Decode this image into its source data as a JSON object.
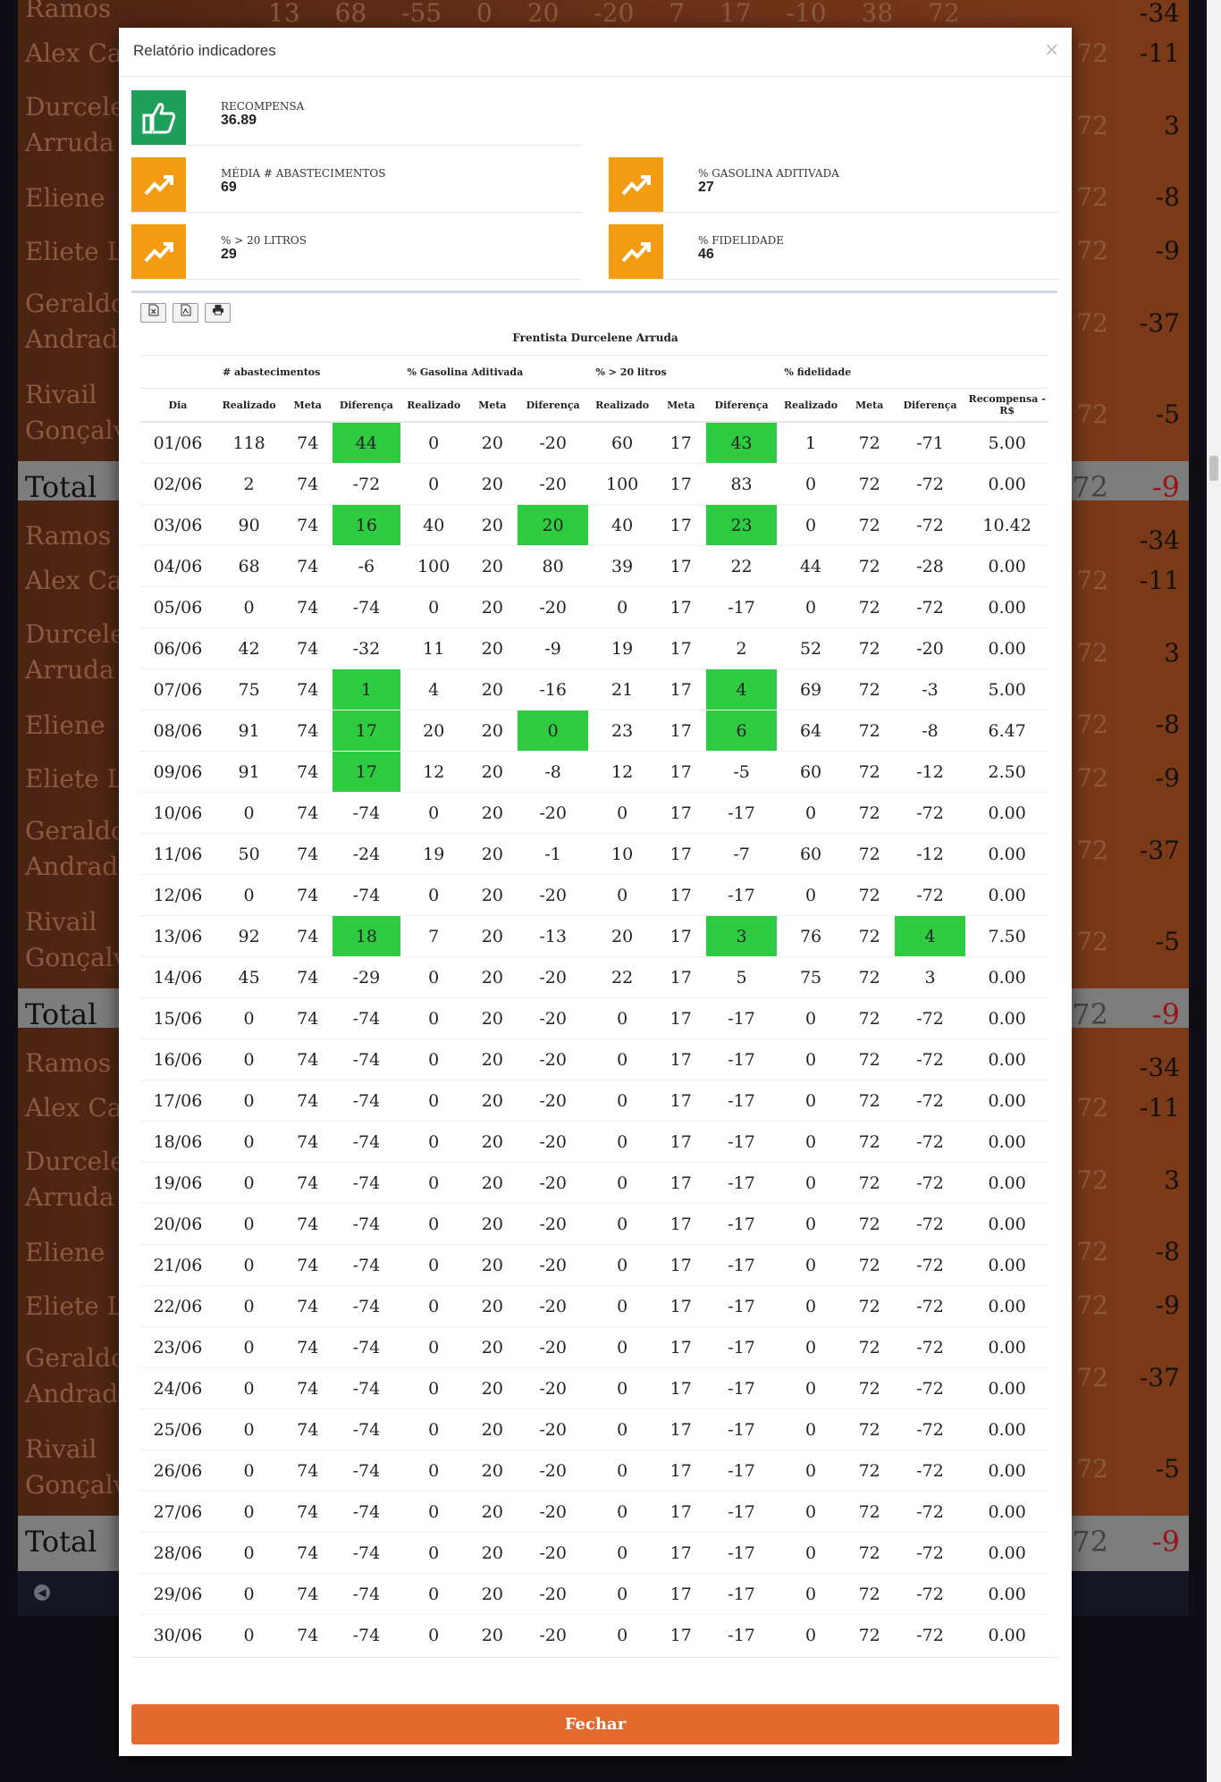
{
  "background": {
    "sections": [
      {
        "top_partial": {
          "name": "Ramos",
          "nums": "13 68 -55 0 20 -20 7 17 -10 38 72",
          "value": "-34"
        },
        "rows": [
          {
            "name": "Alex Ca",
            "ghost": "72",
            "value": "-11"
          },
          {
            "name": "Durcele\nArruda",
            "ghost": "72",
            "value": "3"
          },
          {
            "name": "Eliene",
            "ghost": "72",
            "value": "-8"
          },
          {
            "name": "Eliete La",
            "ghost": "72",
            "value": "-9"
          },
          {
            "name": "Geraldo\nAndrade",
            "ghost": "72",
            "value": "-37"
          },
          {
            "name": "Rivail\nGonçalv",
            "ghost": "72",
            "value": "-5"
          }
        ],
        "total": {
          "label": "Total",
          "ghost": "72",
          "value": "-9"
        }
      }
    ]
  },
  "modal": {
    "title": "Relatório indicadores",
    "close_icon": "×",
    "kpis": {
      "recompensa": {
        "label": "RECOMPENSA",
        "value": "36.89"
      },
      "media": {
        "label": "MÉDIA # ABASTECIMENTOS",
        "value": "69"
      },
      "gasolina": {
        "label": "% GASOLINA ADITIVADA",
        "value": "27"
      },
      "litros": {
        "label": "% > 20 LITROS",
        "value": "29"
      },
      "fidelidade": {
        "label": "% FIDELIDADE",
        "value": "46"
      }
    },
    "colors": {
      "hit": "#2ecc40",
      "orange": "#f39c12",
      "green": "#1ea05a",
      "button": "#e36a2e"
    },
    "report_title": "Frentista Durcelene Arruda",
    "groups": [
      "# abastecimentos",
      "% Gasolina Aditivada",
      "% > 20 litros",
      "% fidelidade"
    ],
    "columns": [
      "Dia",
      "Realizado",
      "Meta",
      "Diferença",
      "Realizado",
      "Meta",
      "Diferença",
      "Realizado",
      "Meta",
      "Diferença",
      "Realizado",
      "Meta",
      "Diferença",
      "Recompensa - R$"
    ],
    "rows": [
      {
        "cells": [
          "01/06",
          "118",
          "74",
          "44",
          "0",
          "20",
          "-20",
          "60",
          "17",
          "43",
          "1",
          "72",
          "-71",
          "5.00"
        ],
        "hits": [
          3,
          9
        ]
      },
      {
        "cells": [
          "02/06",
          "2",
          "74",
          "-72",
          "0",
          "20",
          "-20",
          "100",
          "17",
          "83",
          "0",
          "72",
          "-72",
          "0.00"
        ],
        "hits": []
      },
      {
        "cells": [
          "03/06",
          "90",
          "74",
          "16",
          "40",
          "20",
          "20",
          "40",
          "17",
          "23",
          "0",
          "72",
          "-72",
          "10.42"
        ],
        "hits": [
          3,
          6,
          9
        ]
      },
      {
        "cells": [
          "04/06",
          "68",
          "74",
          "-6",
          "100",
          "20",
          "80",
          "39",
          "17",
          "22",
          "44",
          "72",
          "-28",
          "0.00"
        ],
        "hits": []
      },
      {
        "cells": [
          "05/06",
          "0",
          "74",
          "-74",
          "0",
          "20",
          "-20",
          "0",
          "17",
          "-17",
          "0",
          "72",
          "-72",
          "0.00"
        ],
        "hits": []
      },
      {
        "cells": [
          "06/06",
          "42",
          "74",
          "-32",
          "11",
          "20",
          "-9",
          "19",
          "17",
          "2",
          "52",
          "72",
          "-20",
          "0.00"
        ],
        "hits": []
      },
      {
        "cells": [
          "07/06",
          "75",
          "74",
          "1",
          "4",
          "20",
          "-16",
          "21",
          "17",
          "4",
          "69",
          "72",
          "-3",
          "5.00"
        ],
        "hits": [
          3,
          9
        ]
      },
      {
        "cells": [
          "08/06",
          "91",
          "74",
          "17",
          "20",
          "20",
          "0",
          "23",
          "17",
          "6",
          "64",
          "72",
          "-8",
          "6.47"
        ],
        "hits": [
          3,
          6,
          9
        ]
      },
      {
        "cells": [
          "09/06",
          "91",
          "74",
          "17",
          "12",
          "20",
          "-8",
          "12",
          "17",
          "-5",
          "60",
          "72",
          "-12",
          "2.50"
        ],
        "hits": [
          3
        ]
      },
      {
        "cells": [
          "10/06",
          "0",
          "74",
          "-74",
          "0",
          "20",
          "-20",
          "0",
          "17",
          "-17",
          "0",
          "72",
          "-72",
          "0.00"
        ],
        "hits": []
      },
      {
        "cells": [
          "11/06",
          "50",
          "74",
          "-24",
          "19",
          "20",
          "-1",
          "10",
          "17",
          "-7",
          "60",
          "72",
          "-12",
          "0.00"
        ],
        "hits": []
      },
      {
        "cells": [
          "12/06",
          "0",
          "74",
          "-74",
          "0",
          "20",
          "-20",
          "0",
          "17",
          "-17",
          "0",
          "72",
          "-72",
          "0.00"
        ],
        "hits": []
      },
      {
        "cells": [
          "13/06",
          "92",
          "74",
          "18",
          "7",
          "20",
          "-13",
          "20",
          "17",
          "3",
          "76",
          "72",
          "4",
          "7.50"
        ],
        "hits": [
          3,
          9,
          12
        ]
      },
      {
        "cells": [
          "14/06",
          "45",
          "74",
          "-29",
          "0",
          "20",
          "-20",
          "22",
          "17",
          "5",
          "75",
          "72",
          "3",
          "0.00"
        ],
        "hits": []
      },
      {
        "cells": [
          "15/06",
          "0",
          "74",
          "-74",
          "0",
          "20",
          "-20",
          "0",
          "17",
          "-17",
          "0",
          "72",
          "-72",
          "0.00"
        ],
        "hits": []
      },
      {
        "cells": [
          "16/06",
          "0",
          "74",
          "-74",
          "0",
          "20",
          "-20",
          "0",
          "17",
          "-17",
          "0",
          "72",
          "-72",
          "0.00"
        ],
        "hits": []
      },
      {
        "cells": [
          "17/06",
          "0",
          "74",
          "-74",
          "0",
          "20",
          "-20",
          "0",
          "17",
          "-17",
          "0",
          "72",
          "-72",
          "0.00"
        ],
        "hits": []
      },
      {
        "cells": [
          "18/06",
          "0",
          "74",
          "-74",
          "0",
          "20",
          "-20",
          "0",
          "17",
          "-17",
          "0",
          "72",
          "-72",
          "0.00"
        ],
        "hits": []
      },
      {
        "cells": [
          "19/06",
          "0",
          "74",
          "-74",
          "0",
          "20",
          "-20",
          "0",
          "17",
          "-17",
          "0",
          "72",
          "-72",
          "0.00"
        ],
        "hits": []
      },
      {
        "cells": [
          "20/06",
          "0",
          "74",
          "-74",
          "0",
          "20",
          "-20",
          "0",
          "17",
          "-17",
          "0",
          "72",
          "-72",
          "0.00"
        ],
        "hits": []
      },
      {
        "cells": [
          "21/06",
          "0",
          "74",
          "-74",
          "0",
          "20",
          "-20",
          "0",
          "17",
          "-17",
          "0",
          "72",
          "-72",
          "0.00"
        ],
        "hits": []
      },
      {
        "cells": [
          "22/06",
          "0",
          "74",
          "-74",
          "0",
          "20",
          "-20",
          "0",
          "17",
          "-17",
          "0",
          "72",
          "-72",
          "0.00"
        ],
        "hits": []
      },
      {
        "cells": [
          "23/06",
          "0",
          "74",
          "-74",
          "0",
          "20",
          "-20",
          "0",
          "17",
          "-17",
          "0",
          "72",
          "-72",
          "0.00"
        ],
        "hits": []
      },
      {
        "cells": [
          "24/06",
          "0",
          "74",
          "-74",
          "0",
          "20",
          "-20",
          "0",
          "17",
          "-17",
          "0",
          "72",
          "-72",
          "0.00"
        ],
        "hits": []
      },
      {
        "cells": [
          "25/06",
          "0",
          "74",
          "-74",
          "0",
          "20",
          "-20",
          "0",
          "17",
          "-17",
          "0",
          "72",
          "-72",
          "0.00"
        ],
        "hits": []
      },
      {
        "cells": [
          "26/06",
          "0",
          "74",
          "-74",
          "0",
          "20",
          "-20",
          "0",
          "17",
          "-17",
          "0",
          "72",
          "-72",
          "0.00"
        ],
        "hits": []
      },
      {
        "cells": [
          "27/06",
          "0",
          "74",
          "-74",
          "0",
          "20",
          "-20",
          "0",
          "17",
          "-17",
          "0",
          "72",
          "-72",
          "0.00"
        ],
        "hits": []
      },
      {
        "cells": [
          "28/06",
          "0",
          "74",
          "-74",
          "0",
          "20",
          "-20",
          "0",
          "17",
          "-17",
          "0",
          "72",
          "-72",
          "0.00"
        ],
        "hits": []
      },
      {
        "cells": [
          "29/06",
          "0",
          "74",
          "-74",
          "0",
          "20",
          "-20",
          "0",
          "17",
          "-17",
          "0",
          "72",
          "-72",
          "0.00"
        ],
        "hits": []
      },
      {
        "cells": [
          "30/06",
          "0",
          "74",
          "-74",
          "0",
          "20",
          "-20",
          "0",
          "17",
          "-17",
          "0",
          "72",
          "-72",
          "0.00"
        ],
        "hits": []
      }
    ],
    "toolbar": {
      "excel_icon": "excel-icon",
      "pdf_icon": "pdf-icon",
      "print_icon": "print-icon"
    },
    "close_button": "Fechar"
  }
}
